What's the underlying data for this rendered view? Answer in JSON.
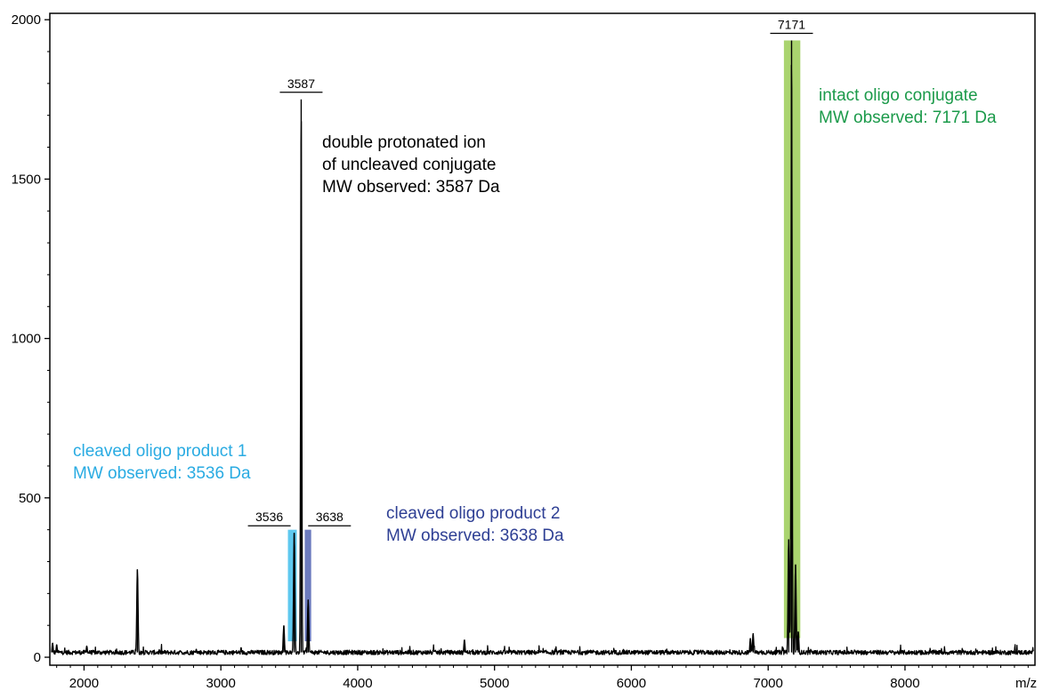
{
  "chart_data": {
    "type": "line",
    "title": "",
    "xlabel": "m/z",
    "ylabel": "",
    "xlim": [
      1750,
      8950
    ],
    "ylim": [
      -25,
      2020
    ],
    "x_ticks": [
      2000,
      3000,
      4000,
      5000,
      6000,
      7000,
      8000
    ],
    "y_ticks": [
      0,
      500,
      1000,
      1500,
      2000
    ],
    "grid": false,
    "baseline_noise": 15,
    "series": [
      {
        "color": "#000000",
        "peaks": [
          {
            "x": 1770,
            "y": 45
          },
          {
            "x": 1800,
            "y": 40
          },
          {
            "x": 2020,
            "y": 35
          },
          {
            "x": 2390,
            "y": 275
          },
          {
            "x": 2820,
            "y": 25
          },
          {
            "x": 3460,
            "y": 100
          },
          {
            "x": 3536,
            "y": 390
          },
          {
            "x": 3587,
            "y": 1750
          },
          {
            "x": 3638,
            "y": 180
          },
          {
            "x": 4780,
            "y": 55
          },
          {
            "x": 6870,
            "y": 60
          },
          {
            "x": 6890,
            "y": 75
          },
          {
            "x": 7150,
            "y": 370
          },
          {
            "x": 7171,
            "y": 1935
          },
          {
            "x": 7200,
            "y": 290
          },
          {
            "x": 7220,
            "y": 80
          }
        ]
      }
    ],
    "peak_labels": [
      {
        "text": "3536",
        "x": 3536,
        "y": 390
      },
      {
        "text": "3587",
        "x": 3587,
        "y": 1750
      },
      {
        "text": "3638",
        "x": 3638,
        "y": 390
      },
      {
        "text": "7171",
        "x": 7171,
        "y": 1935
      }
    ],
    "highlight_bands": [
      {
        "x0": 3490,
        "x1": 3555,
        "y0": 50,
        "y1": 400,
        "color": "#29b7ea"
      },
      {
        "x0": 3613,
        "x1": 3660,
        "y0": 50,
        "y1": 400,
        "color": "#3b4fa8"
      },
      {
        "x0": 7115,
        "x1": 7235,
        "y0": 60,
        "y1": 1935,
        "color": "#8dc63f"
      }
    ],
    "annotations": [
      {
        "lines": [
          "double protonated ion",
          "of uncleaved conjugate",
          "MW observed: 3587 Da"
        ],
        "color": "#000000"
      },
      {
        "lines": [
          "cleaved oligo product 1",
          "MW observed: 3536 Da"
        ],
        "color": "#29abe2"
      },
      {
        "lines": [
          "cleaved oligo product 2",
          "MW observed: 3638 Da"
        ],
        "color": "#2e3f94"
      },
      {
        "lines": [
          "intact oligo conjugate",
          "MW observed: 7171 Da"
        ],
        "color": "#1b9a4a"
      }
    ]
  }
}
